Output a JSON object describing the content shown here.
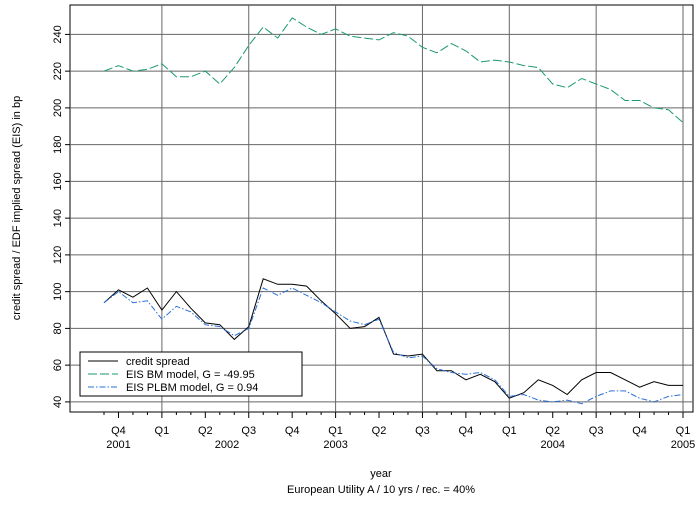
{
  "chart_data": {
    "type": "line",
    "x_label": "year",
    "y_label": "credit spread / EDF implied spread (EIS) in bp",
    "caption": "European Utility A / 10 yrs / rec. = 40%",
    "categories": [
      null,
      "Q4",
      null,
      null,
      "Q1",
      null,
      null,
      "Q2",
      null,
      null,
      "Q3",
      null,
      null,
      "Q4",
      null,
      null,
      "Q1",
      null,
      null,
      "Q2",
      null,
      null,
      "Q3",
      null,
      null,
      "Q4",
      null,
      null,
      "Q1",
      null,
      null,
      "Q2",
      null,
      null,
      "Q3",
      null,
      null,
      "Q4",
      null,
      null,
      "Q1"
    ],
    "year_labels": [
      "2001",
      "2002",
      "2003",
      "2004",
      "2005"
    ],
    "series": [
      {
        "name": "credit spread",
        "color": "#000000",
        "dash": "solid",
        "values": [
          94,
          101,
          97,
          102,
          90,
          100,
          91,
          83,
          82,
          74,
          81,
          107,
          104,
          104,
          103,
          95,
          88,
          80,
          81,
          86,
          66,
          65,
          66,
          57,
          57,
          52,
          55,
          51,
          42,
          45,
          52,
          49,
          44,
          52,
          56,
          56,
          52,
          48,
          51,
          49,
          49
        ]
      },
      {
        "name": "EIS BM model, G = -49.95",
        "color": "#1a9a6a",
        "dash": "dashed",
        "values": [
          220,
          223,
          220,
          221,
          224,
          217,
          217,
          220,
          213,
          222,
          234,
          244,
          238,
          249,
          244,
          240,
          243,
          239,
          238,
          237,
          241,
          239,
          233,
          230,
          235,
          231,
          225,
          226,
          225,
          223,
          222,
          213,
          211,
          216,
          213,
          210,
          204,
          204,
          200,
          199,
          192
        ]
      },
      {
        "name": "EIS PLBM model, G = 0.94",
        "color": "#2a6fd6",
        "dash": "dashdot",
        "values": [
          94,
          100,
          94,
          95,
          85,
          92,
          89,
          82,
          81,
          76,
          80,
          102,
          98,
          102,
          98,
          94,
          89,
          84,
          82,
          85,
          67,
          64,
          65,
          58,
          56,
          55,
          56,
          52,
          43,
          44,
          41,
          40,
          41,
          39,
          43,
          46,
          46,
          42,
          40,
          43,
          44
        ]
      }
    ],
    "ylim": [
      34.5,
      256
    ],
    "yticks": [
      40,
      60,
      80,
      100,
      120,
      140,
      160,
      180,
      200,
      220,
      240
    ],
    "grid": true,
    "legend": "lower left"
  }
}
